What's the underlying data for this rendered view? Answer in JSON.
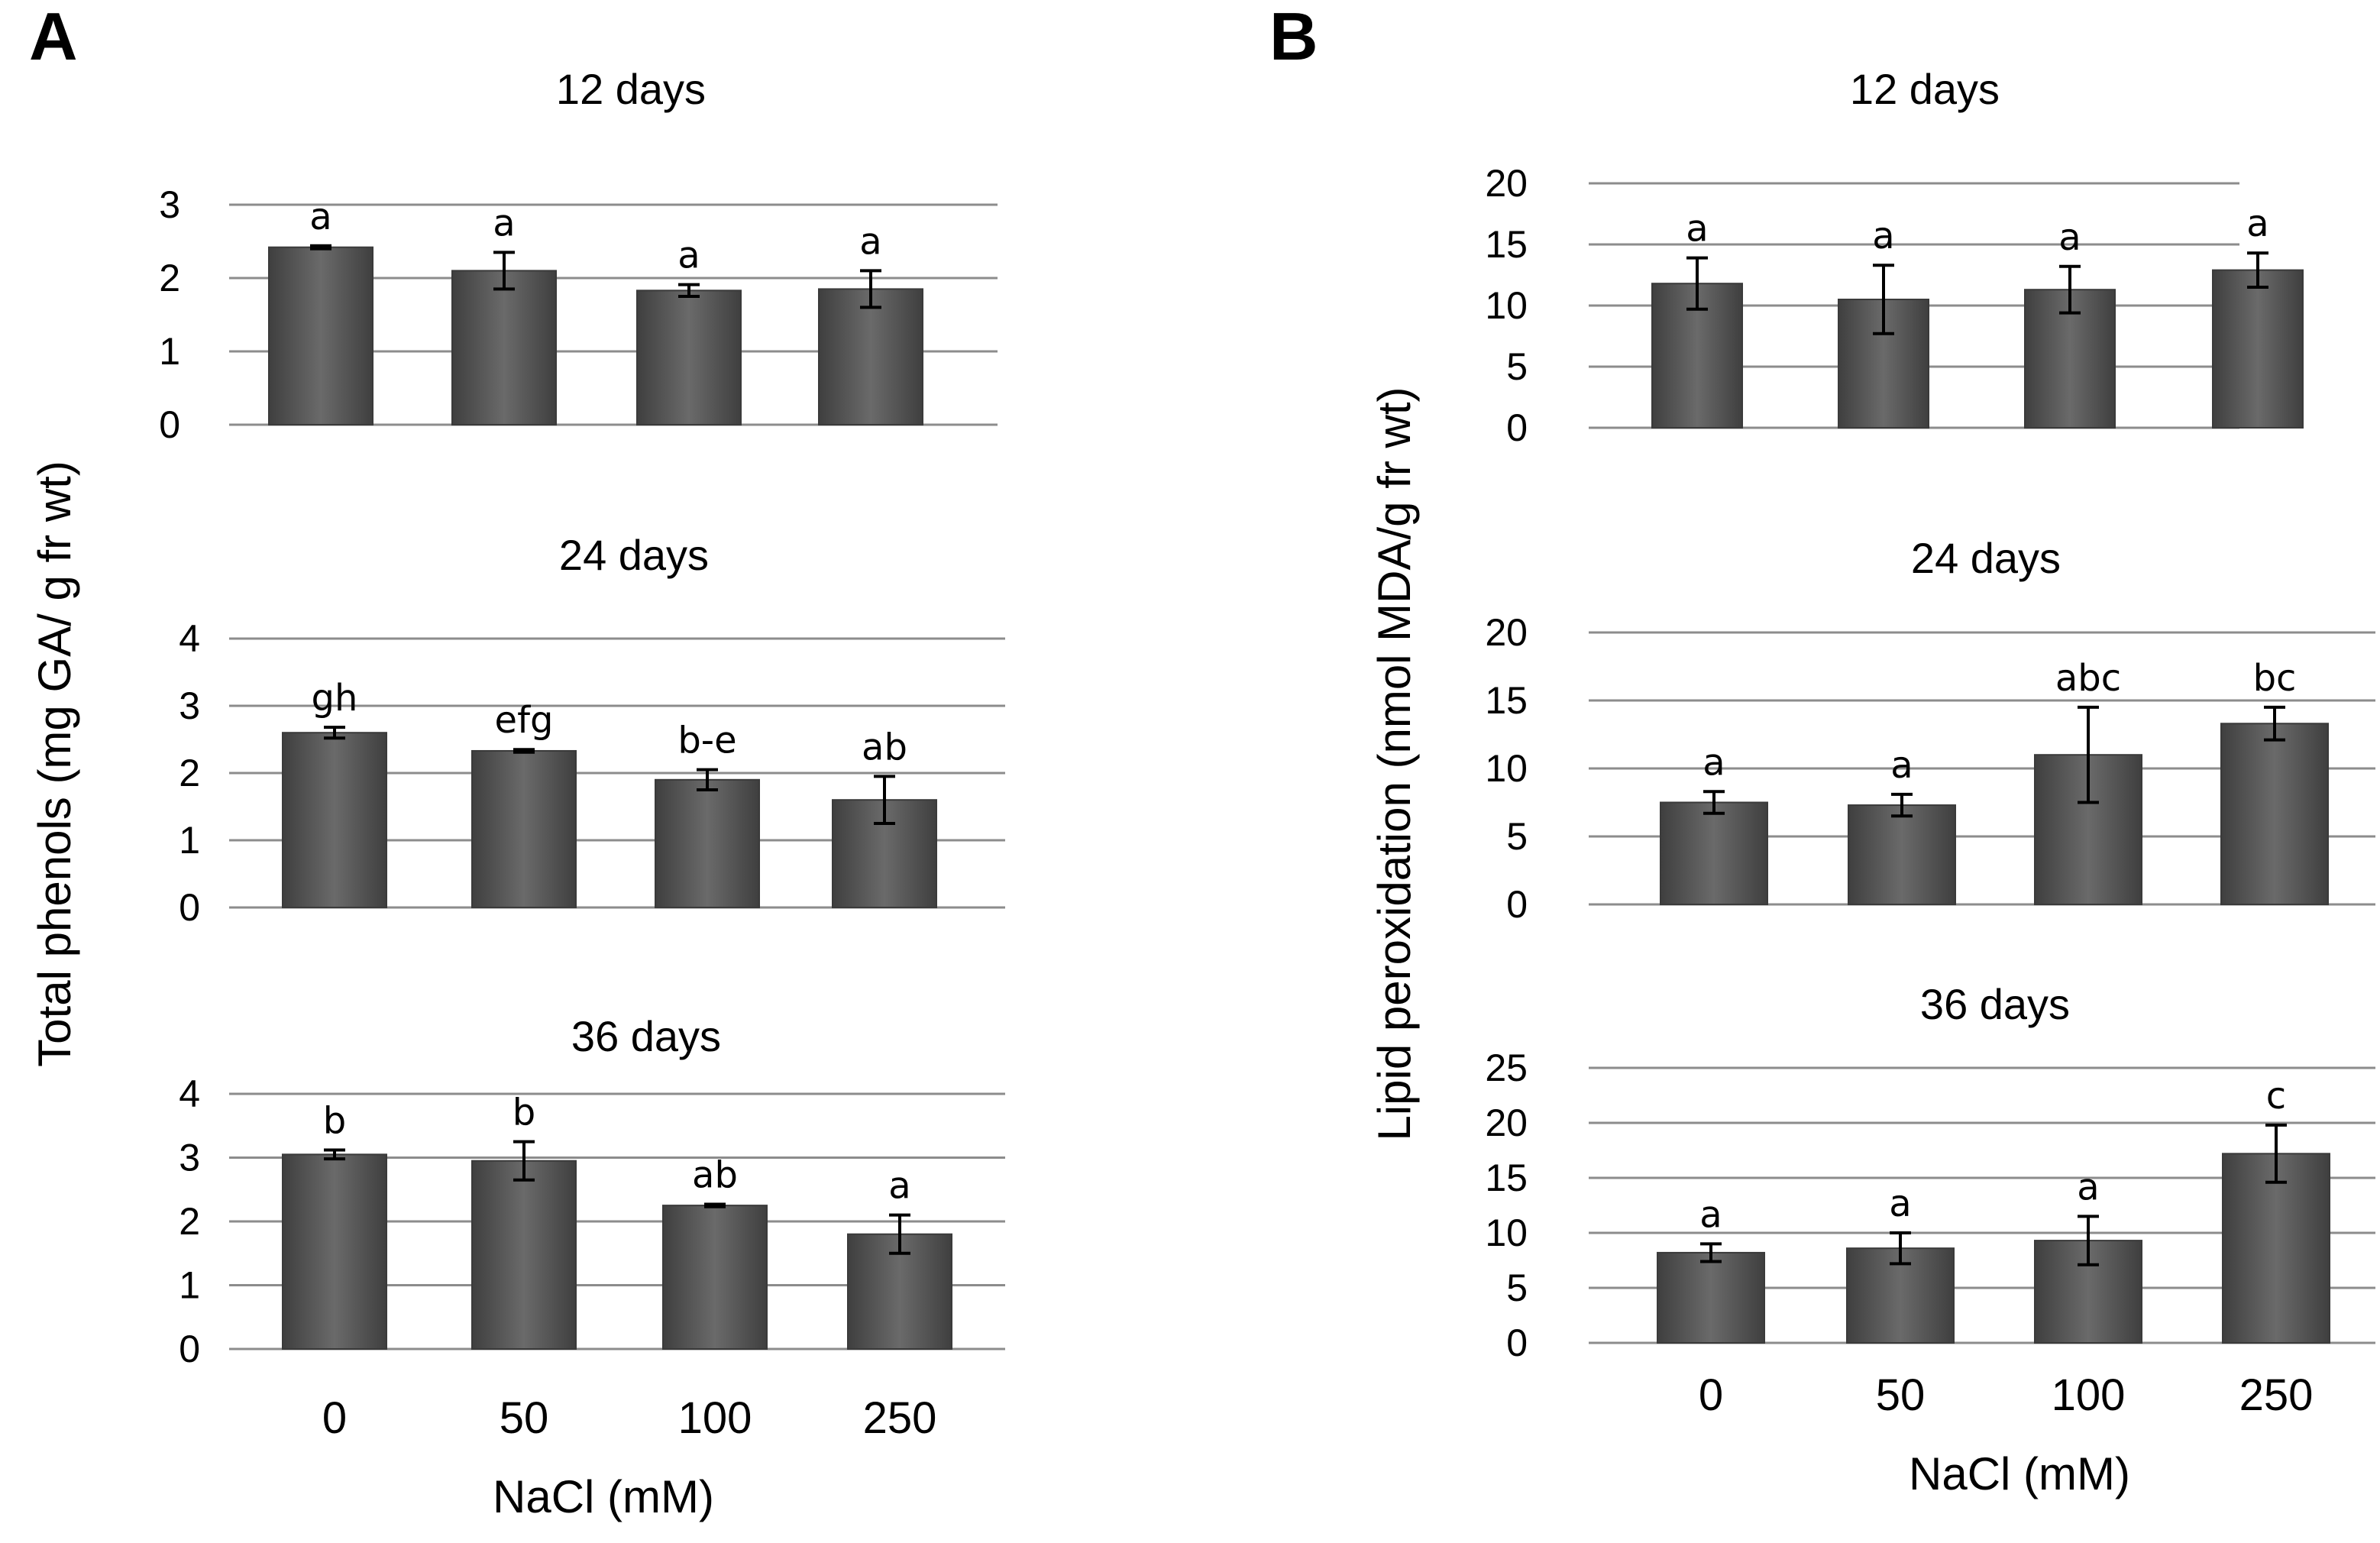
{
  "panels": {
    "a": {
      "label": "A",
      "ylabel": "Total phenols (mg GA/ g fr wt)",
      "xlabel": "NaCl (mM)",
      "categories": [
        "0",
        "50",
        "100",
        "250"
      ]
    },
    "b": {
      "label": "B",
      "ylabel": "Lipid peroxidation (nmol MDA/g fr wt)",
      "xlabel": "NaCl (mM)",
      "categories": [
        "0",
        "50",
        "100",
        "250"
      ]
    }
  },
  "chart_data": [
    {
      "type": "bar",
      "panel": "A",
      "title": "12 days",
      "xlabel": "NaCl (mM)",
      "ylabel": "Total phenols (mg GA/ g fr wt)",
      "categories": [
        "0",
        "50",
        "100",
        "250"
      ],
      "values": [
        2.42,
        2.1,
        1.83,
        1.85
      ],
      "errors": [
        0.02,
        0.25,
        0.08,
        0.25
      ],
      "letters": [
        "a",
        "a",
        "a",
        "a"
      ],
      "ylim": [
        0,
        3
      ],
      "yticks": [
        "0",
        "1",
        "2",
        "3"
      ],
      "grid": true
    },
    {
      "type": "bar",
      "panel": "A",
      "title": "24 days",
      "xlabel": "NaCl (mM)",
      "ylabel": "Total phenols (mg GA/ g fr wt)",
      "categories": [
        "0",
        "50",
        "100",
        "250"
      ],
      "values": [
        2.6,
        2.33,
        1.9,
        1.6
      ],
      "errors": [
        0.08,
        0.02,
        0.15,
        0.35
      ],
      "letters": [
        "gh",
        "efg",
        "b-e",
        "ab"
      ],
      "ylim": [
        0,
        4
      ],
      "yticks": [
        "0",
        "1",
        "2",
        "3",
        "4"
      ],
      "grid": true
    },
    {
      "type": "bar",
      "panel": "A",
      "title": "36 days",
      "xlabel": "NaCl (mM)",
      "ylabel": "Total phenols (mg GA/ g fr wt)",
      "categories": [
        "0",
        "50",
        "100",
        "250"
      ],
      "values": [
        3.05,
        2.95,
        2.25,
        1.8
      ],
      "errors": [
        0.07,
        0.3,
        0.02,
        0.3
      ],
      "letters": [
        "b",
        "b",
        "ab",
        "a"
      ],
      "ylim": [
        0,
        4
      ],
      "yticks": [
        "0",
        "1",
        "2",
        "3",
        "4"
      ],
      "grid": true
    },
    {
      "type": "bar",
      "panel": "B",
      "title": "12 days",
      "xlabel": "NaCl (mM)",
      "ylabel": "Lipid peroxidation (nmol MDA/g fr wt)",
      "categories": [
        "0",
        "50",
        "100",
        "250"
      ],
      "values": [
        11.8,
        10.5,
        11.3,
        12.9
      ],
      "errors": [
        2.1,
        2.8,
        1.9,
        1.4
      ],
      "letters": [
        "a",
        "a",
        "a",
        "a"
      ],
      "ylim": [
        0,
        20
      ],
      "yticks": [
        "0",
        "5",
        "10",
        "15",
        "20"
      ],
      "grid": true
    },
    {
      "type": "bar",
      "panel": "B",
      "title": "24 days",
      "xlabel": "NaCl (mM)",
      "ylabel": "Lipid peroxidation (nmol MDA/g fr wt)",
      "categories": [
        "0",
        "50",
        "100",
        "250"
      ],
      "values": [
        7.5,
        7.3,
        11.0,
        13.3
      ],
      "errors": [
        0.8,
        0.8,
        3.5,
        1.2
      ],
      "letters": [
        "a",
        "a",
        "abc",
        "bc"
      ],
      "ylim": [
        0,
        20
      ],
      "yticks": [
        "0",
        "5",
        "10",
        "15",
        "20"
      ],
      "grid": true
    },
    {
      "type": "bar",
      "panel": "B",
      "title": "36 days",
      "xlabel": "NaCl (mM)",
      "ylabel": "Lipid peroxidation (nmol MDA/g fr wt)",
      "categories": [
        "0",
        "50",
        "100",
        "250"
      ],
      "values": [
        8.2,
        8.6,
        9.3,
        17.2
      ],
      "errors": [
        0.8,
        1.4,
        2.2,
        2.6
      ],
      "letters": [
        "a",
        "a",
        "a",
        "c"
      ],
      "ylim": [
        0,
        25
      ],
      "yticks": [
        "0",
        "5",
        "10",
        "15",
        "20",
        "25"
      ],
      "grid": true
    }
  ]
}
